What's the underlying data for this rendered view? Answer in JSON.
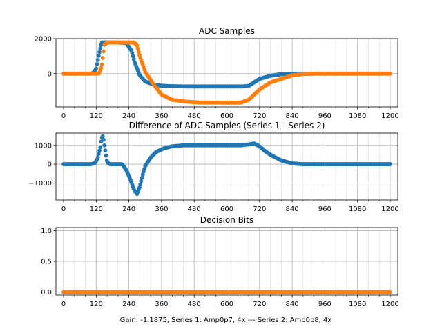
{
  "figure": {
    "xlabel": "Gain: -1.1875, Series 1: Amp0p7, 4x --- Series 2: Amp0p8, 4x"
  },
  "colors": {
    "series1": "#1f77b4",
    "series2": "#ff7f0e",
    "grid": "#b0b0b0",
    "axis": "#000000"
  },
  "chart_data": [
    {
      "type": "scatter",
      "title": "ADC Samples",
      "xlim": [
        -28,
        1228
      ],
      "ylim": [
        -1900,
        2000
      ],
      "xticks": [
        0,
        120,
        240,
        360,
        480,
        600,
        720,
        840,
        960,
        1080,
        1200
      ],
      "yticks": [
        2000,
        0
      ],
      "grid": true,
      "series": [
        {
          "name": "Series 1",
          "color": "#1f77b4",
          "points": [
            [
              0,
              0
            ],
            [
              100,
              0
            ],
            [
              110,
              50
            ],
            [
              120,
              300
            ],
            [
              130,
              1100
            ],
            [
              140,
              1780
            ],
            [
              200,
              1780
            ],
            [
              230,
              1750
            ],
            [
              250,
              1300
            ],
            [
              260,
              700
            ],
            [
              280,
              -100
            ],
            [
              300,
              -450
            ],
            [
              330,
              -620
            ],
            [
              360,
              -690
            ],
            [
              400,
              -720
            ],
            [
              450,
              -730
            ],
            [
              660,
              -730
            ],
            [
              680,
              -700
            ],
            [
              700,
              -500
            ],
            [
              720,
              -300
            ],
            [
              760,
              -120
            ],
            [
              800,
              -30
            ],
            [
              840,
              0
            ],
            [
              1200,
              0
            ]
          ]
        },
        {
          "name": "Series 2",
          "color": "#ff7f0e",
          "points": [
            [
              0,
              0
            ],
            [
              130,
              0
            ],
            [
              140,
              400
            ],
            [
              150,
              1650
            ],
            [
              160,
              1780
            ],
            [
              260,
              1780
            ],
            [
              270,
              1600
            ],
            [
              280,
              1000
            ],
            [
              300,
              100
            ],
            [
              330,
              -600
            ],
            [
              360,
              -1200
            ],
            [
              400,
              -1500
            ],
            [
              450,
              -1600
            ],
            [
              500,
              -1650
            ],
            [
              650,
              -1660
            ],
            [
              680,
              -1500
            ],
            [
              700,
              -1200
            ],
            [
              720,
              -900
            ],
            [
              760,
              -500
            ],
            [
              800,
              -300
            ],
            [
              840,
              -100
            ],
            [
              880,
              -20
            ],
            [
              920,
              0
            ],
            [
              1200,
              0
            ]
          ]
        }
      ]
    },
    {
      "type": "scatter",
      "title": "Difference of ADC Samples (Series 1 - Series 2)",
      "xlim": [
        -28,
        1228
      ],
      "ylim": [
        -1900,
        1650
      ],
      "xticks": [
        0,
        120,
        240,
        360,
        480,
        600,
        720,
        840,
        960,
        1080,
        1200
      ],
      "yticks": [
        1000,
        0,
        -1000
      ],
      "grid": true,
      "series": [
        {
          "name": "Difference",
          "color": "#1f77b4",
          "points": [
            [
              0,
              0
            ],
            [
              100,
              0
            ],
            [
              115,
              50
            ],
            [
              125,
              300
            ],
            [
              135,
              900
            ],
            [
              140,
              1400
            ],
            [
              145,
              1500
            ],
            [
              150,
              1000
            ],
            [
              160,
              100
            ],
            [
              170,
              0
            ],
            [
              215,
              0
            ],
            [
              230,
              -300
            ],
            [
              245,
              -800
            ],
            [
              260,
              -1400
            ],
            [
              270,
              -1580
            ],
            [
              280,
              -1200
            ],
            [
              290,
              -600
            ],
            [
              300,
              -100
            ],
            [
              320,
              350
            ],
            [
              340,
              650
            ],
            [
              370,
              850
            ],
            [
              400,
              950
            ],
            [
              440,
              1000
            ],
            [
              650,
              1000
            ],
            [
              680,
              1050
            ],
            [
              700,
              1100
            ],
            [
              720,
              950
            ],
            [
              740,
              700
            ],
            [
              760,
              500
            ],
            [
              800,
              200
            ],
            [
              840,
              40
            ],
            [
              880,
              0
            ],
            [
              1200,
              0
            ]
          ]
        }
      ]
    },
    {
      "type": "scatter",
      "title": "Decision Bits",
      "xlim": [
        -28,
        1228
      ],
      "ylim": [
        -0.05,
        1.05
      ],
      "xticks": [
        0,
        120,
        240,
        360,
        480,
        600,
        720,
        840,
        960,
        1080,
        1200
      ],
      "yticks": [
        1.0,
        0.5,
        0.0
      ],
      "grid": true,
      "series": [
        {
          "name": "Series 1",
          "color": "#1f77b4",
          "points": [
            [
              0,
              0
            ],
            [
              1200,
              0
            ]
          ]
        },
        {
          "name": "Series 2",
          "color": "#ff7f0e",
          "points": [
            [
              0,
              0
            ],
            [
              1200,
              0
            ]
          ]
        }
      ]
    }
  ]
}
